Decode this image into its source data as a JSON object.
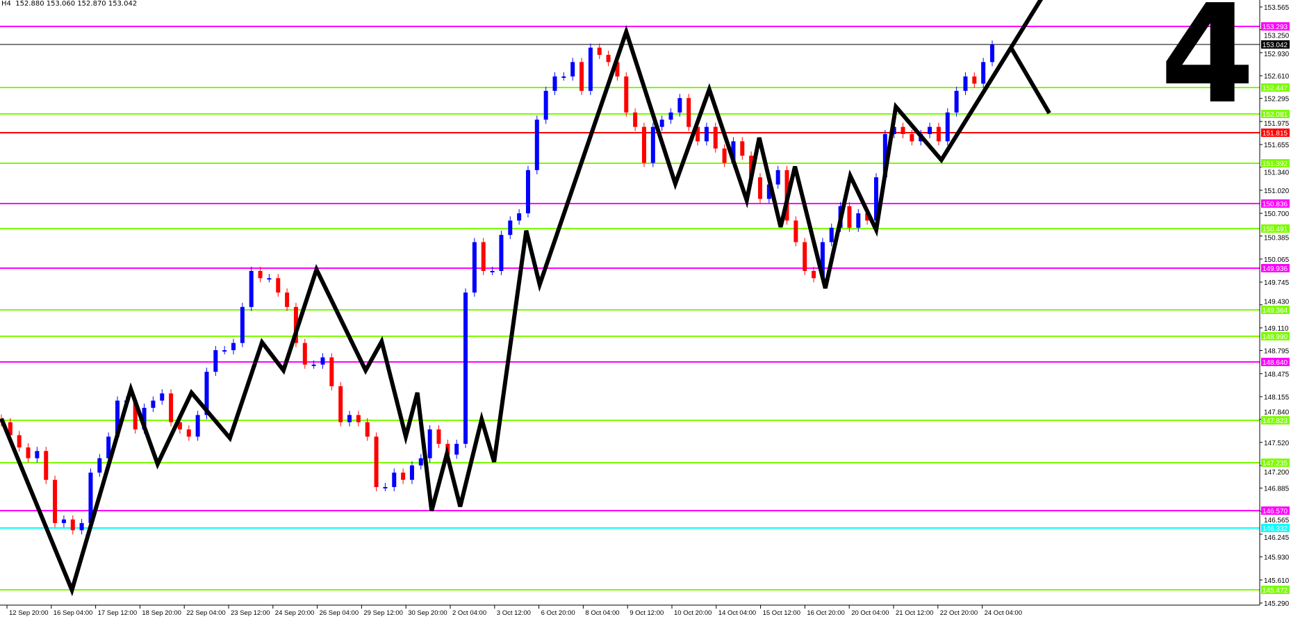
{
  "header": {
    "timeframe": "H4",
    "ohlc": "152.880 153.060 152.870 153.042"
  },
  "wave_label": "4",
  "colors": {
    "up_candle": "#0000ff",
    "down_candle": "#ff0000",
    "zigzag": "#000000",
    "magenta_level": "#ff00ff",
    "green_level": "#7cfc00",
    "red_level": "#ff0000",
    "cyan_level": "#00ffff",
    "current_price": "#000000"
  },
  "chart_data": {
    "type": "candlestick",
    "title": "",
    "ylim": [
      145.29,
      153.565
    ],
    "grid": false,
    "y_ticks": [
      "153.565",
      "153.250",
      "152.930",
      "152.610",
      "152.295",
      "151.975",
      "151.655",
      "151.340",
      "151.020",
      "150.700",
      "150.385",
      "150.065",
      "149.745",
      "149.430",
      "149.110",
      "148.795",
      "148.475",
      "148.155",
      "147.840",
      "147.520",
      "147.200",
      "146.885",
      "146.565",
      "146.245",
      "145.930",
      "145.610",
      "145.290"
    ],
    "x_ticks": [
      "12 Sep 20:00",
      "16 Sep 04:00",
      "17 Sep 12:00",
      "18 Sep 20:00",
      "22 Sep 04:00",
      "23 Sep 12:00",
      "24 Sep 20:00",
      "26 Sep 04:00",
      "29 Sep 12:00",
      "30 Sep 20:00",
      "2 Oct 04:00",
      "3 Oct 12:00",
      "6 Oct 20:00",
      "8 Oct 04:00",
      "9 Oct 12:00",
      "10 Oct 20:00",
      "14 Oct 04:00",
      "15 Oct 12:00",
      "16 Oct 20:00",
      "20 Oct 04:00",
      "21 Oct 12:00",
      "22 Oct 20:00",
      "24 Oct 04:00"
    ],
    "first_open": 147.85,
    "closes": [
      147.8,
      147.62,
      147.45,
      147.3,
      147.4,
      147.0,
      146.4,
      146.45,
      146.3,
      146.4,
      147.1,
      147.3,
      147.6,
      148.1,
      148.1,
      147.7,
      148.0,
      148.1,
      148.2,
      147.8,
      147.7,
      147.6,
      147.9,
      148.5,
      148.8,
      148.8,
      148.9,
      149.4,
      149.9,
      149.8,
      149.8,
      149.6,
      149.4,
      148.9,
      148.6,
      148.6,
      148.7,
      148.3,
      147.8,
      147.9,
      147.8,
      147.6,
      146.9,
      146.9,
      147.1,
      147.0,
      147.2,
      147.3,
      147.7,
      147.5,
      147.35,
      147.5,
      149.6,
      150.3,
      149.9,
      149.9,
      150.4,
      150.6,
      150.7,
      151.3,
      152.0,
      152.4,
      152.6,
      152.6,
      152.8,
      152.4,
      153.0,
      152.9,
      152.8,
      152.6,
      152.1,
      151.9,
      151.4,
      151.9,
      152.0,
      152.1,
      152.3,
      151.9,
      151.7,
      151.9,
      151.6,
      151.4,
      151.7,
      151.5,
      151.2,
      150.9,
      151.1,
      151.3,
      150.6,
      150.3,
      149.9,
      149.8,
      150.3,
      150.5,
      150.8,
      150.5,
      150.7,
      150.6,
      151.2,
      151.8,
      151.9,
      151.8,
      151.7,
      151.8,
      151.9,
      151.7,
      152.1,
      152.4,
      152.6,
      152.5,
      152.8,
      153.042
    ],
    "zigzag": [
      [
        0,
        147.85
      ],
      [
        7.9,
        145.47
      ],
      [
        14.5,
        148.26
      ],
      [
        17.5,
        147.22
      ],
      [
        21.3,
        148.21
      ],
      [
        25.6,
        147.58
      ],
      [
        29.2,
        148.91
      ],
      [
        31.6,
        148.52
      ],
      [
        35.3,
        149.92
      ],
      [
        40.8,
        148.52
      ],
      [
        42.6,
        148.92
      ],
      [
        45.3,
        147.6
      ],
      [
        46.6,
        148.21
      ],
      [
        48.2,
        146.57
      ],
      [
        49.9,
        147.36
      ],
      [
        51.4,
        146.63
      ],
      [
        53.8,
        147.84
      ],
      [
        55.2,
        147.25
      ],
      [
        58.8,
        150.46
      ],
      [
        60.3,
        149.71
      ],
      [
        70.0,
        153.22
      ],
      [
        75.5,
        151.11
      ],
      [
        79.3,
        152.42
      ],
      [
        83.5,
        150.88
      ],
      [
        84.9,
        151.75
      ],
      [
        87.3,
        150.51
      ],
      [
        88.9,
        151.35
      ],
      [
        92.3,
        149.66
      ],
      [
        95.1,
        151.22
      ],
      [
        98.0,
        150.47
      ],
      [
        100.2,
        152.18
      ],
      [
        105.3,
        151.44
      ],
      [
        116.5,
        153.68
      ]
    ],
    "projection": [
      [
        113.1,
        153.0
      ],
      [
        117.4,
        152.09
      ]
    ],
    "levels": [
      {
        "price": 153.293,
        "label": "153.293",
        "kind": "magenta"
      },
      {
        "price": 153.042,
        "label": "153.042",
        "kind": "current"
      },
      {
        "price": 152.447,
        "label": "152.447",
        "kind": "green"
      },
      {
        "price": 152.081,
        "label": "152.081",
        "kind": "green"
      },
      {
        "price": 151.815,
        "label": "151.815",
        "kind": "red"
      },
      {
        "price": 151.392,
        "label": "151.392",
        "kind": "green"
      },
      {
        "price": 150.836,
        "label": "150.836",
        "kind": "magenta"
      },
      {
        "price": 150.491,
        "label": "150.491",
        "kind": "green"
      },
      {
        "price": 149.936,
        "label": "149.936",
        "kind": "magenta"
      },
      {
        "price": 149.364,
        "label": "149.364",
        "kind": "green"
      },
      {
        "price": 148.99,
        "label": "148.990",
        "kind": "green"
      },
      {
        "price": 148.64,
        "label": "148.640",
        "kind": "magenta"
      },
      {
        "price": 147.823,
        "label": "147.823",
        "kind": "green"
      },
      {
        "price": 147.235,
        "label": "147.235",
        "kind": "green"
      },
      {
        "price": 146.57,
        "label": "146.570",
        "kind": "magenta"
      },
      {
        "price": 146.332,
        "label": "146.332",
        "kind": "cyan"
      },
      {
        "price": 145.472,
        "label": "145.472",
        "kind": "green"
      }
    ]
  }
}
